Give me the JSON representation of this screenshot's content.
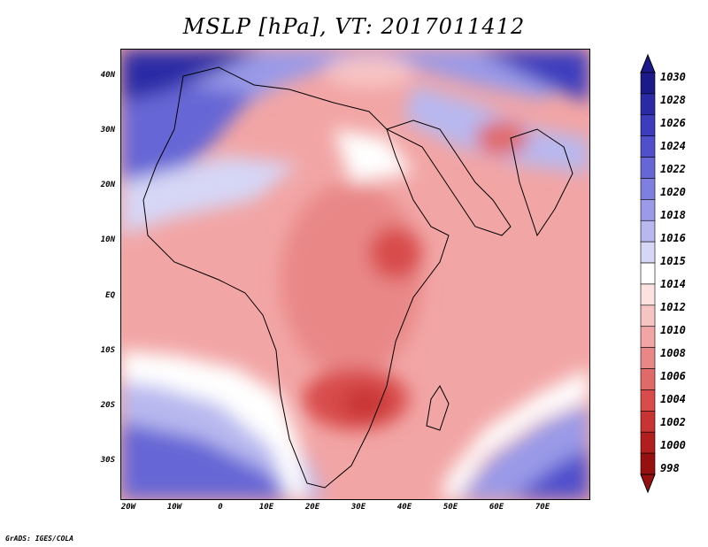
{
  "title": "MSLP [hPa], VT: 2017011412",
  "footer": "GrADS: IGES/COLA",
  "y_axis_labels": [
    "40N",
    "30N",
    "20N",
    "10N",
    "EQ",
    "10S",
    "20S",
    "30S"
  ],
  "x_axis_labels": [
    "20W",
    "10W",
    "0",
    "10E",
    "20E",
    "30E",
    "40E",
    "50E",
    "60E",
    "70E"
  ],
  "colorbar": {
    "levels": [
      "1030",
      "1028",
      "1026",
      "1024",
      "1022",
      "1020",
      "1018",
      "1016",
      "1015",
      "1014",
      "1012",
      "1010",
      "1008",
      "1006",
      "1004",
      "1002",
      "1000",
      "998"
    ],
    "colors": [
      "#1c1a8a",
      "#2b2aa6",
      "#3c3cbd",
      "#5050cc",
      "#6666d6",
      "#7f7fe0",
      "#9a9ae8",
      "#b8b8ef",
      "#d6d6f6",
      "#ffffff",
      "#fde2e2",
      "#f7c4c4",
      "#f2a5a5",
      "#e98787",
      "#e06a6a",
      "#d84c4c",
      "#c83434",
      "#b01e1e",
      "#961010"
    ]
  },
  "map": {
    "region": "Africa, Middle East and South Asia",
    "lon_range": [
      -22,
      80
    ],
    "lat_range": [
      -37,
      45
    ]
  }
}
